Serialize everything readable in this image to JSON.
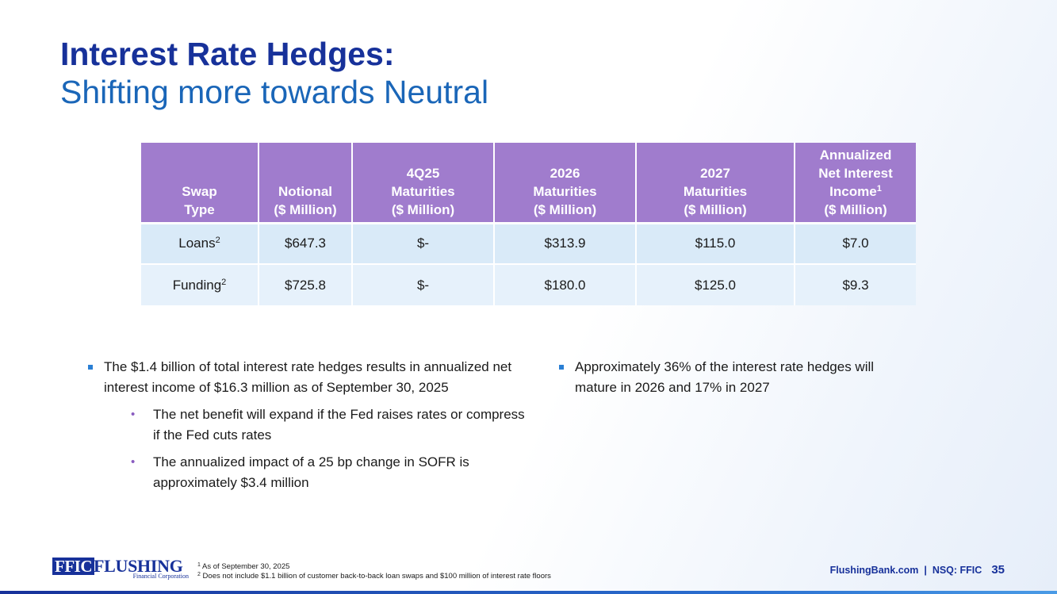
{
  "title": {
    "main": "Interest Rate Hedges:",
    "sub": "Shifting more towards Neutral"
  },
  "table": {
    "headers": [
      [
        "Swap",
        "Type"
      ],
      [
        "Notional",
        "($ Million)"
      ],
      [
        "4Q25",
        "Maturities",
        "($ Million)"
      ],
      [
        "2026",
        "Maturities",
        "($ Million)"
      ],
      [
        "2027",
        "Maturities",
        "($ Million)"
      ],
      [
        "Annualized",
        "Net Interest",
        "Income",
        "($ Million)"
      ]
    ],
    "income_footnote": "1",
    "rows": [
      {
        "type": "Loans",
        "note": "2",
        "notional": "$647.3",
        "q4_2025": "$-",
        "y2026": "$313.9",
        "y2027": "$115.0",
        "nii": "$7.0"
      },
      {
        "type": "Funding",
        "note": "2",
        "notional": "$725.8",
        "q4_2025": "$-",
        "y2026": "$180.0",
        "y2027": "$125.0",
        "nii": "$9.3"
      }
    ]
  },
  "bullets_left": {
    "main": "The $1.4 billion of total interest rate hedges results in annualized net interest income of $16.3 million as of September 30, 2025",
    "sub": [
      "The net benefit will expand if the Fed raises rates or compress if the Fed cuts rates",
      "The annualized impact of a 25 bp change in SOFR is approximately $3.4 million"
    ]
  },
  "bullets_right": {
    "main": "Approximately 36% of the interest rate hedges will mature in 2026 and 17% in 2027"
  },
  "sub_marker": "•",
  "footnotes": [
    {
      "num": "1",
      "text": "As of September 30, 2025"
    },
    {
      "num": "2",
      "text": "Does not include $1.1 billion of customer back-to-back loan swaps and $100 million of interest rate floors"
    }
  ],
  "logo": {
    "ffic": "FFIC",
    "flushing": "FLUSHING",
    "fincorp": "Financial Corporation"
  },
  "footer": {
    "site": "FlushingBank.com  |  NSQ: FFIC",
    "page": "35"
  },
  "colors": {
    "title_main": "#17319a",
    "title_sub": "#1a66b8",
    "table_header": "#a07ccd",
    "row_loans": "#d9eaf8",
    "row_funding": "#e6f1fb",
    "bullet_square": "#2a7fd4",
    "bullet_sub": "#8a5cc0"
  }
}
